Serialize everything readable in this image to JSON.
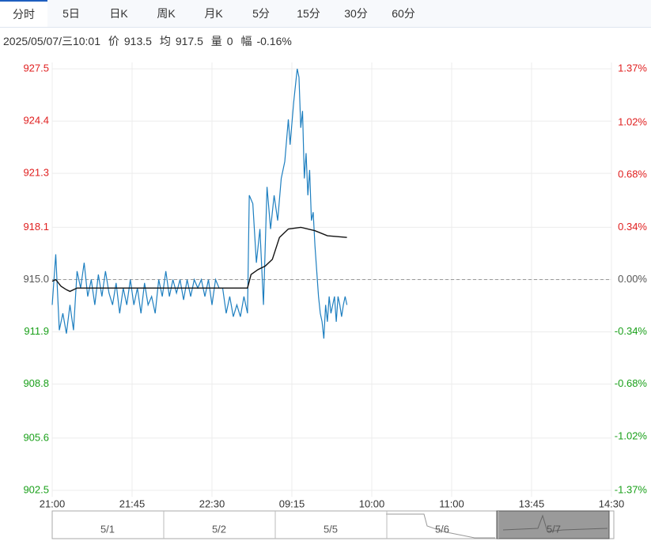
{
  "tabs": [
    "分时",
    "5日",
    "日K",
    "周K",
    "月K",
    "5分",
    "15分",
    "30分",
    "60分"
  ],
  "info": {
    "time": "2025/05/07/三10:01",
    "price_label": "价",
    "price": "913.5",
    "avg_label": "均",
    "avg": "917.5",
    "vol_label": "量",
    "vol": "0",
    "change_label": "幅",
    "change": "-0.16%"
  },
  "navigator": [
    "5/1",
    "5/2",
    "5/5",
    "5/6",
    "5/7"
  ],
  "chart_data": {
    "type": "line",
    "base": 915.0,
    "up_color": "#e02020",
    "down_color": "#1aa01a",
    "base_color": "#555555",
    "grid": true,
    "xlim": [
      0,
      315
    ],
    "xticks": [
      {
        "value": 0,
        "label": "21:00"
      },
      {
        "value": 45,
        "label": "21:45"
      },
      {
        "value": 90,
        "label": "22:30"
      },
      {
        "value": 135,
        "label": "09:15"
      },
      {
        "value": 180,
        "label": "10:00"
      },
      {
        "value": 225,
        "label": "11:00"
      },
      {
        "value": 270,
        "label": "13:45"
      },
      {
        "value": 315,
        "label": "14:30"
      }
    ],
    "ylim": [
      902.5,
      927.5
    ],
    "yticks": [
      902.5,
      905.6,
      908.8,
      911.9,
      {
        "value": 915.0,
        "label": "915.0"
      },
      918.1,
      921.3,
      924.4,
      927.5
    ],
    "y2lim": [
      -1.37,
      1.37
    ],
    "y2ticks": [
      {
        "value": -1.37,
        "label": "-1.37%"
      },
      {
        "value": -1.02,
        "label": "-1.02%"
      },
      {
        "value": -0.68,
        "label": "-0.68%"
      },
      {
        "value": -0.34,
        "label": "-0.34%"
      },
      {
        "value": 0,
        "label": "0.00%"
      },
      {
        "value": 0.34,
        "label": "0.34%"
      },
      {
        "value": 0.68,
        "label": "0.68%"
      },
      {
        "value": 1.02,
        "label": "1.02%"
      },
      {
        "value": 1.37,
        "label": "1.37%"
      }
    ],
    "series": [
      {
        "name": "价",
        "color": "#1e7fc0",
        "x": [
          0,
          2,
          4,
          6,
          8,
          10,
          12,
          14,
          16,
          18,
          20,
          22,
          24,
          26,
          28,
          30,
          32,
          34,
          36,
          38,
          40,
          42,
          44,
          46,
          48,
          50,
          52,
          54,
          56,
          58,
          60,
          62,
          64,
          66,
          68,
          70,
          72,
          74,
          76,
          78,
          80,
          82,
          84,
          86,
          88,
          90,
          92,
          94,
          96,
          98,
          100,
          102,
          104,
          106,
          108,
          110,
          111,
          113,
          115,
          117,
          119,
          121,
          123,
          125,
          127,
          129,
          131,
          133,
          134,
          136,
          138,
          139,
          140,
          141,
          142,
          143,
          144,
          145,
          146,
          147,
          148,
          149,
          150,
          151,
          152,
          153,
          154,
          155,
          156,
          157,
          158,
          159,
          160,
          161,
          162,
          163,
          164,
          165,
          166
        ],
        "values": [
          913.5,
          916.5,
          912.0,
          913.0,
          911.8,
          913.5,
          912.0,
          915.5,
          914.5,
          916.0,
          914.0,
          915.0,
          913.5,
          915.3,
          914.0,
          915.5,
          914.2,
          913.5,
          914.8,
          913.0,
          914.5,
          913.5,
          915.0,
          913.5,
          914.5,
          913.0,
          914.8,
          913.5,
          914.0,
          913.0,
          915.0,
          914.0,
          915.5,
          914.0,
          915.0,
          914.2,
          915.0,
          913.8,
          915.0,
          914.0,
          915.0,
          914.5,
          915.0,
          914.0,
          915.0,
          913.5,
          915.0,
          914.5,
          914.5,
          913.0,
          914.0,
          912.8,
          913.5,
          912.8,
          914.0,
          913.0,
          920.0,
          919.5,
          916.0,
          918.0,
          913.5,
          920.5,
          918.0,
          920.0,
          918.5,
          921.0,
          922.0,
          924.5,
          923.0,
          925.5,
          927.5,
          927.0,
          924.0,
          925.0,
          921.0,
          922.5,
          920.0,
          921.5,
          918.5,
          919.0,
          917.0,
          915.5,
          914.0,
          913.0,
          912.5,
          911.5,
          913.5,
          912.5,
          914.0,
          913.0,
          913.5,
          914.0,
          912.5,
          914.0,
          913.5,
          912.8,
          913.5,
          914.0,
          913.5
        ]
      },
      {
        "name": "均",
        "color": "#111111",
        "x": [
          0,
          2,
          5,
          8,
          10,
          14,
          20,
          40,
          60,
          80,
          100,
          110,
          112,
          116,
          120,
          124,
          128,
          133,
          140,
          148,
          155,
          166
        ],
        "values": [
          914.9,
          915.0,
          914.6,
          914.4,
          914.3,
          914.5,
          914.5,
          914.5,
          914.5,
          914.5,
          914.5,
          914.5,
          915.3,
          915.6,
          915.8,
          916.2,
          917.5,
          918.0,
          918.1,
          917.9,
          917.6,
          917.5
        ]
      }
    ]
  }
}
